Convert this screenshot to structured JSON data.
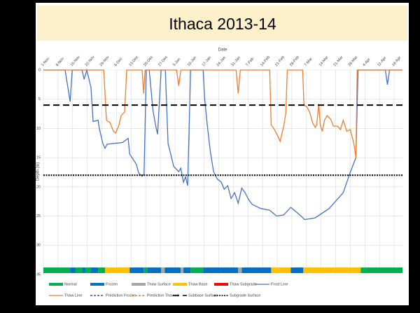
{
  "chart_data": {
    "type": "line",
    "title": "Ithaca 2013-14",
    "x_label": "Date",
    "y_label": "Depth (in)",
    "xlim": [
      0,
      172
    ],
    "ylim": [
      0,
      35
    ],
    "y_reversed": true,
    "grid": true,
    "legend": "bottom",
    "xticks": [
      {
        "value": 0,
        "label": "1-Nov"
      },
      {
        "value": 7,
        "label": "8-Nov"
      },
      {
        "value": 14,
        "label": "15-Nov"
      },
      {
        "value": 21,
        "label": "22-Nov"
      },
      {
        "value": 28,
        "label": "29-Nov"
      },
      {
        "value": 35,
        "label": "6-Dec"
      },
      {
        "value": 42,
        "label": "13-Dec"
      },
      {
        "value": 49,
        "label": "20-Dec"
      },
      {
        "value": 56,
        "label": "27-Dec"
      },
      {
        "value": 63,
        "label": "3-Jan"
      },
      {
        "value": 70,
        "label": "10-Jan"
      },
      {
        "value": 77,
        "label": "17-Jan"
      },
      {
        "value": 84,
        "label": "24-Jan"
      },
      {
        "value": 91,
        "label": "31-Jan"
      },
      {
        "value": 98,
        "label": "7-Feb"
      },
      {
        "value": 105,
        "label": "14-Feb"
      },
      {
        "value": 112,
        "label": "21-Feb"
      },
      {
        "value": 119,
        "label": "28-Feb"
      },
      {
        "value": 126,
        "label": "7-Mar"
      },
      {
        "value": 133,
        "label": "14-Mar"
      },
      {
        "value": 140,
        "label": "21-Mar"
      },
      {
        "value": 147,
        "label": "28-Mar"
      },
      {
        "value": 154,
        "label": "4-Apr"
      },
      {
        "value": 161,
        "label": "11-Apr"
      },
      {
        "value": 168,
        "label": "18-Apr"
      }
    ],
    "yticks": [
      0,
      5,
      10,
      15,
      20,
      25,
      30,
      35
    ],
    "status_states": [
      {
        "name": "Normal",
        "color": "#00b050"
      },
      {
        "name": "Frozen",
        "color": "#0070c0"
      },
      {
        "name": "Thaw Surface",
        "color": "#a6a6a6"
      },
      {
        "name": "Thaw Base",
        "color": "#ffc000"
      },
      {
        "name": "Thaw Subgrade",
        "color": "#ff0000"
      }
    ],
    "status": [
      {
        "state": 0,
        "from": 0,
        "to": 12.8
      },
      {
        "state": 1,
        "from": 12.8,
        "to": 15.4
      },
      {
        "state": 0,
        "from": 15.4,
        "to": 18.5
      },
      {
        "state": 1,
        "from": 18.5,
        "to": 20.1
      },
      {
        "state": 0,
        "from": 20.1,
        "to": 22.8
      },
      {
        "state": 1,
        "from": 22.8,
        "to": 26.2
      },
      {
        "state": 0,
        "from": 26.2,
        "to": 29.5
      },
      {
        "state": 3,
        "from": 29.5,
        "to": 41.3
      },
      {
        "state": 1,
        "from": 41.3,
        "to": 48
      },
      {
        "state": 0,
        "from": 48,
        "to": 49.7
      },
      {
        "state": 1,
        "from": 49.7,
        "to": 56.4
      },
      {
        "state": 2,
        "from": 56.4,
        "to": 58.1
      },
      {
        "state": 1,
        "from": 58.1,
        "to": 65.8
      },
      {
        "state": 2,
        "from": 65.8,
        "to": 67.1
      },
      {
        "state": 1,
        "from": 67.1,
        "to": 70.5
      },
      {
        "state": 0,
        "from": 70.5,
        "to": 76.5
      },
      {
        "state": 1,
        "from": 76.5,
        "to": 93.3
      },
      {
        "state": 2,
        "from": 93.3,
        "to": 95
      },
      {
        "state": 1,
        "from": 95,
        "to": 109.1
      },
      {
        "state": 3,
        "from": 109.1,
        "to": 118.5
      },
      {
        "state": 1,
        "from": 118.5,
        "to": 124.5
      },
      {
        "state": 3,
        "from": 124.5,
        "to": 152
      },
      {
        "state": 0,
        "from": 152,
        "to": 172
      }
    ],
    "series": [
      {
        "name": "Frost Line",
        "color": "#4472c4",
        "dash": "solid",
        "x": [
          0,
          10.4,
          12.8,
          13.8,
          18.5,
          19.5,
          20.8,
          22.8,
          23.8,
          26.2,
          26.8,
          28.5,
          29.5,
          30.5,
          37.9,
          40.6,
          41.3,
          43,
          44.6,
          45.6,
          47.3,
          48.2,
          49.3,
          50.7,
          52.5,
          53.7,
          54.7,
          56.4,
          58.4,
          59.7,
          61,
          62.4,
          63.8,
          64.8,
          65.8,
          67.1,
          68.1,
          69.1,
          70.5,
          76.5,
          77.2,
          78.5,
          79.9,
          81.5,
          83.2,
          85.2,
          86.6,
          88.3,
          89.9,
          91.6,
          93.3,
          95,
          96.6,
          98.3,
          100,
          104,
          108.4,
          111.7,
          115.1,
          118.5,
          121.8,
          125.2,
          130.2,
          136.9,
          143.6,
          147,
          149.7,
          150.7,
          163.8,
          164.8,
          165.8,
          172
        ],
        "values": [
          0,
          0,
          5.4,
          0,
          0,
          1.6,
          0,
          3,
          8.8,
          8.6,
          10,
          12.6,
          13.4,
          12.7,
          12.4,
          11.7,
          14.4,
          15.3,
          16.2,
          17.6,
          18.2,
          17.8,
          0,
          0,
          7,
          9.4,
          11,
          0,
          0,
          12.6,
          14.4,
          16.5,
          17,
          17.4,
          16.8,
          19.2,
          18.3,
          19.8,
          0,
          0,
          4.8,
          9.4,
          13.8,
          17.4,
          18.6,
          19.2,
          20.4,
          19.8,
          22,
          21,
          22.8,
          20.2,
          21,
          22.2,
          23,
          23.7,
          24,
          25,
          24.8,
          23.5,
          24.5,
          25.6,
          25.3,
          23.7,
          21,
          17.5,
          15,
          0,
          0,
          2.5,
          0,
          0
        ]
      },
      {
        "name": "Thaw Line",
        "color": "#ed7d31",
        "dash": "solid",
        "x": [
          0,
          28.9,
          30.2,
          31.9,
          33.6,
          34.6,
          36.2,
          37.2,
          38.9,
          39.9,
          47.3,
          48,
          48.7,
          63.8,
          64.8,
          65.8,
          92.3,
          93.3,
          94.3,
          108.4,
          109.1,
          110.7,
          112.4,
          113.4,
          115.1,
          116.1,
          116.8,
          124.2,
          124.8,
          126.2,
          127.5,
          128.9,
          130.2,
          130.9,
          131.9,
          132.6,
          133.6,
          134.6,
          135.9,
          137.6,
          138.9,
          140.9,
          142.3,
          143.6,
          145.3,
          147,
          148.7,
          149.7,
          150.3,
          172
        ],
        "values": [
          0,
          0,
          8.6,
          9,
          10.5,
          10.8,
          9.4,
          7.8,
          7.2,
          0,
          0,
          4,
          0,
          0,
          2.7,
          0,
          0,
          4,
          0,
          0,
          9.4,
          10.2,
          11.4,
          12.2,
          9.6,
          7.4,
          0,
          0,
          6,
          6.3,
          7.2,
          9,
          9.8,
          9.4,
          5.8,
          9.4,
          10.5,
          8.6,
          7.8,
          8.4,
          9.6,
          9.6,
          10.2,
          8.6,
          10.5,
          10.2,
          12.6,
          15,
          0,
          0
        ]
      },
      {
        "name": "Prediction Frozen",
        "color": "#7030a0",
        "dash": "dashed",
        "x": [],
        "values": []
      },
      {
        "name": "Prediction Thawed",
        "color": "#ed7d31",
        "dash": "dashed",
        "x": [],
        "values": []
      },
      {
        "name": "Subbase Surface",
        "color": "#000000",
        "dash": "long",
        "x": [
          0,
          172
        ],
        "values": [
          6,
          6
        ]
      },
      {
        "name": "Subgrade Surface",
        "color": "#000000",
        "dash": "dotted",
        "x": [
          0,
          172
        ],
        "values": [
          18,
          18
        ]
      }
    ]
  }
}
